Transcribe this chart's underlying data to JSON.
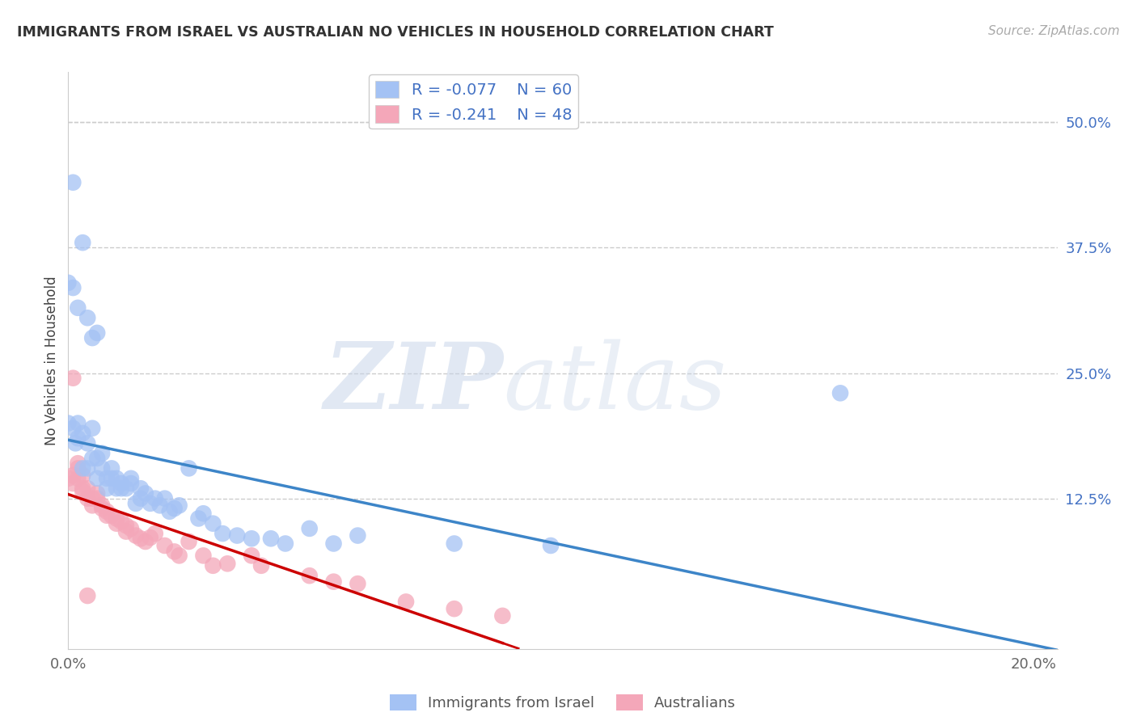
{
  "title": "IMMIGRANTS FROM ISRAEL VS AUSTRALIAN NO VEHICLES IN HOUSEHOLD CORRELATION CHART",
  "source": "Source: ZipAtlas.com",
  "ylabel": "No Vehicles in Household",
  "xlim": [
    0.0,
    0.205
  ],
  "ylim": [
    -0.025,
    0.55
  ],
  "legend_label1": "Immigrants from Israel",
  "legend_label2": "Australians",
  "blue_color": "#a4c2f4",
  "pink_color": "#f4a7b9",
  "trend_blue": "#3d85c8",
  "trend_pink": "#cc0000",
  "watermark_zip": "ZIP",
  "watermark_atlas": "atlas",
  "background_color": "#ffffff",
  "grid_color": "#cccccc",
  "blue_x": [
    0.001,
    0.0015,
    0.002,
    0.002,
    0.003,
    0.003,
    0.004,
    0.004,
    0.005,
    0.005,
    0.006,
    0.006,
    0.007,
    0.007,
    0.008,
    0.008,
    0.009,
    0.009,
    0.01,
    0.01,
    0.011,
    0.011,
    0.012,
    0.013,
    0.013,
    0.014,
    0.015,
    0.015,
    0.016,
    0.017,
    0.018,
    0.019,
    0.02,
    0.021,
    0.022,
    0.023,
    0.025,
    0.027,
    0.028,
    0.03,
    0.032,
    0.035,
    0.038,
    0.042,
    0.045,
    0.05,
    0.055,
    0.06,
    0.08,
    0.1,
    0.001,
    0.001,
    0.002,
    0.003,
    0.004,
    0.005,
    0.006,
    0.0,
    0.0,
    0.16
  ],
  "blue_y": [
    0.195,
    0.18,
    0.185,
    0.2,
    0.155,
    0.19,
    0.155,
    0.18,
    0.165,
    0.195,
    0.165,
    0.145,
    0.17,
    0.155,
    0.135,
    0.145,
    0.155,
    0.145,
    0.135,
    0.145,
    0.14,
    0.135,
    0.135,
    0.14,
    0.145,
    0.12,
    0.135,
    0.125,
    0.13,
    0.12,
    0.125,
    0.118,
    0.125,
    0.112,
    0.115,
    0.118,
    0.155,
    0.105,
    0.11,
    0.1,
    0.09,
    0.088,
    0.085,
    0.085,
    0.08,
    0.095,
    0.08,
    0.088,
    0.08,
    0.078,
    0.335,
    0.44,
    0.315,
    0.38,
    0.305,
    0.285,
    0.29,
    0.2,
    0.34,
    0.23
  ],
  "pink_x": [
    0.001,
    0.001,
    0.002,
    0.002,
    0.003,
    0.003,
    0.004,
    0.004,
    0.005,
    0.005,
    0.006,
    0.006,
    0.007,
    0.007,
    0.008,
    0.008,
    0.009,
    0.01,
    0.01,
    0.011,
    0.012,
    0.012,
    0.013,
    0.014,
    0.015,
    0.016,
    0.017,
    0.018,
    0.02,
    0.022,
    0.023,
    0.025,
    0.028,
    0.03,
    0.033,
    0.038,
    0.04,
    0.05,
    0.055,
    0.06,
    0.07,
    0.08,
    0.09,
    0.0,
    0.001,
    0.002,
    0.003,
    0.004
  ],
  "pink_y": [
    0.14,
    0.245,
    0.155,
    0.145,
    0.148,
    0.135,
    0.135,
    0.125,
    0.125,
    0.118,
    0.13,
    0.125,
    0.115,
    0.118,
    0.112,
    0.108,
    0.108,
    0.105,
    0.1,
    0.102,
    0.098,
    0.092,
    0.095,
    0.088,
    0.085,
    0.082,
    0.086,
    0.09,
    0.078,
    0.072,
    0.068,
    0.082,
    0.068,
    0.058,
    0.06,
    0.068,
    0.058,
    0.048,
    0.042,
    0.04,
    0.022,
    0.015,
    0.008,
    0.145,
    0.148,
    0.16,
    0.132,
    0.028
  ]
}
